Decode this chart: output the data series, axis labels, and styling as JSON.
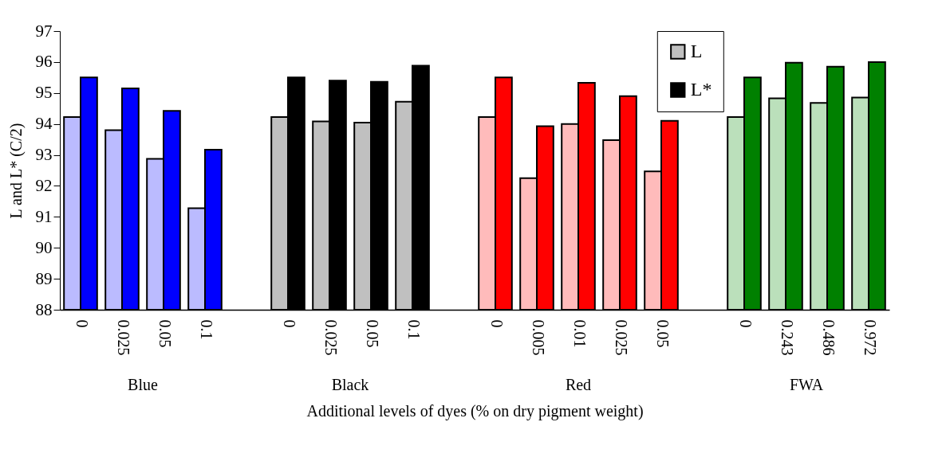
{
  "chart_data": {
    "type": "bar",
    "xlabel": "Additional levels of dyes (% on dry pigment weight)",
    "ylabel": "L and L* (C/2)",
    "categories": [
      "0",
      "0.025",
      "0.05",
      "0.1",
      null,
      "0",
      "0.025",
      "0.05",
      "0.1",
      null,
      "0",
      "0.005",
      "0.01",
      "0.025",
      "0.05",
      null,
      "0",
      "0.243",
      "0.486",
      "0.972"
    ],
    "series": [
      {
        "name": "L",
        "color": "#c0c0c0",
        "values": [
          94.22,
          93.8,
          92.87,
          91.28,
          null,
          94.22,
          94.08,
          94.04,
          94.72,
          null,
          94.22,
          92.25,
          94.0,
          93.48,
          92.47,
          null,
          94.22,
          94.83,
          94.68,
          94.85
        ],
        "colors": [
          "#bbbbff",
          "#bbbbff",
          "#bbbbff",
          "#bbbbff",
          null,
          "#c0c0c0",
          "#c0c0c0",
          "#c0c0c0",
          "#c0c0c0",
          null,
          "#ffbbbb",
          "#ffbbbb",
          "#ffbbbb",
          "#ffbbbb",
          "#ffbbbb",
          null,
          "#bbe0bb",
          "#bbe0bb",
          "#bbe0bb",
          "#bbe0bb"
        ]
      },
      {
        "name": "L*",
        "color": "#000000",
        "values": [
          95.5,
          95.15,
          94.42,
          93.17,
          null,
          95.5,
          95.4,
          95.36,
          95.88,
          null,
          95.5,
          93.93,
          95.33,
          94.9,
          94.1,
          null,
          95.5,
          95.98,
          95.85,
          96.0
        ],
        "colors": [
          "#0000ff",
          "#0000ff",
          "#0000ff",
          "#0000ff",
          null,
          "#000000",
          "#000000",
          "#000000",
          "#000000",
          null,
          "#ff0000",
          "#ff0000",
          "#ff0000",
          "#ff0000",
          "#ff0000",
          null,
          "#008000",
          "#008000",
          "#008000",
          "#008000"
        ]
      }
    ],
    "annotations": [
      "Blue",
      "Black",
      "Red",
      "FWA"
    ],
    "ylim": [
      88,
      97
    ],
    "yticks": [
      88,
      89,
      90,
      91,
      92,
      93,
      94,
      95,
      96,
      97
    ],
    "grid": false,
    "legend": "top right"
  }
}
